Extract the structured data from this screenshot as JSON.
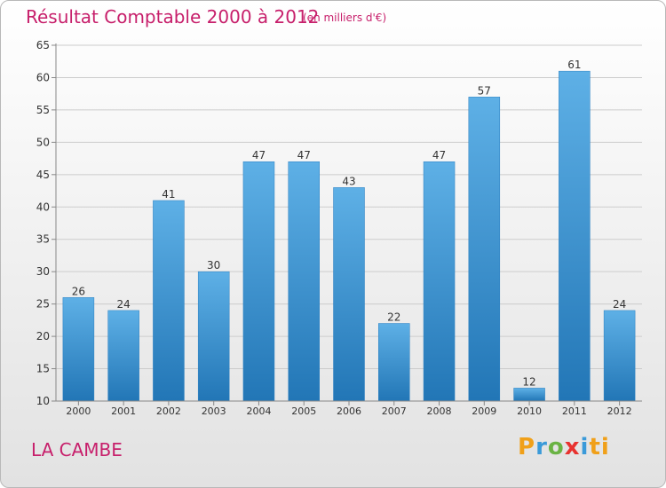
{
  "chart_data": {
    "type": "bar",
    "title": "Résultat Comptable 2000 à 2012",
    "subtitle": "(en milliers d'€)",
    "categories": [
      "2000",
      "2001",
      "2002",
      "2003",
      "2004",
      "2005",
      "2006",
      "2007",
      "2008",
      "2009",
      "2010",
      "2011",
      "2012"
    ],
    "values": [
      26,
      24,
      41,
      30,
      47,
      47,
      43,
      22,
      47,
      57,
      12,
      61,
      24
    ],
    "ylim": [
      10,
      65
    ],
    "yticks": [
      10,
      15,
      20,
      25,
      30,
      35,
      40,
      45,
      50,
      55,
      60,
      65
    ],
    "xlabel": "",
    "ylabel": "",
    "grid": true
  },
  "footer": {
    "place": "LA CAMBE",
    "logo_letters": [
      "P",
      "r",
      "o",
      "x",
      "i",
      "t",
      "i"
    ]
  },
  "colors": {
    "title": "#c71f6b",
    "bar_light": "#5eb0e6",
    "bar_dark": "#2276b6",
    "grid": "#cccccc",
    "axis_text": "#333333"
  }
}
